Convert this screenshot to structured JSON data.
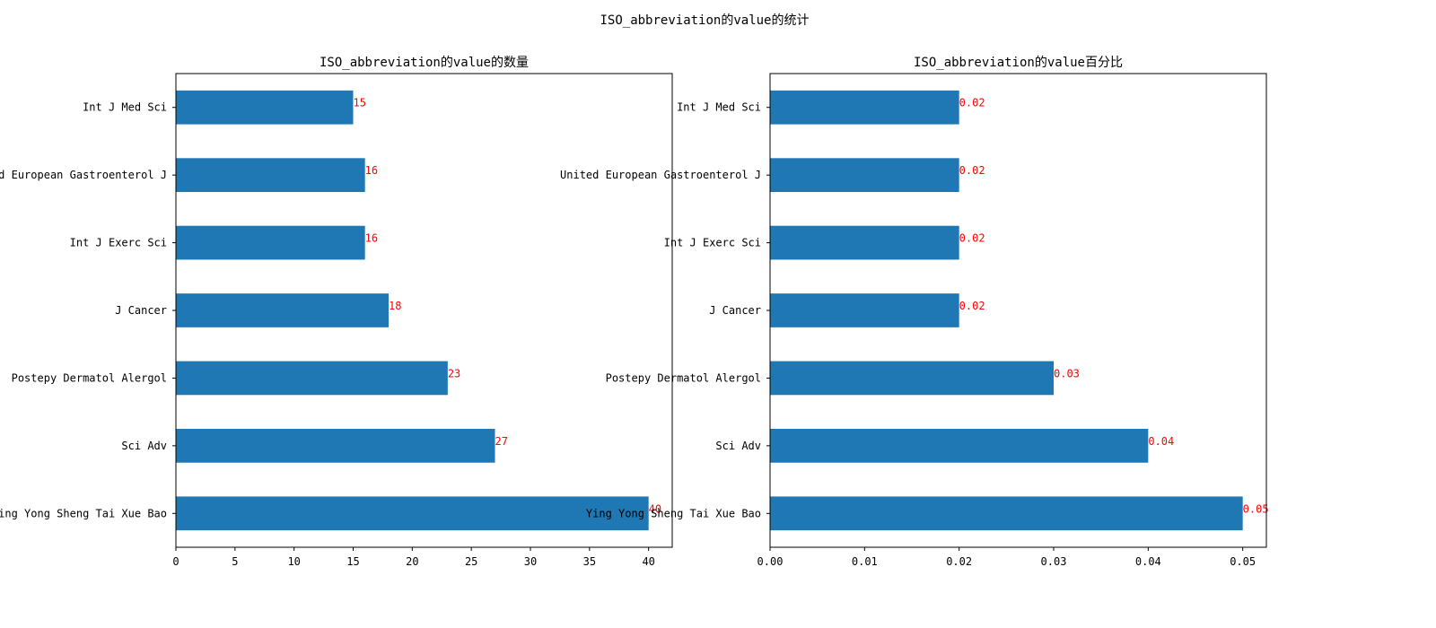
{
  "figure": {
    "suptitle": "ISO_abbreviation的value的统计"
  },
  "colors": {
    "bar": "#1f77b4",
    "data_label": "#ff0000",
    "axis": "#000000"
  },
  "chart_data": [
    {
      "type": "bar",
      "orientation": "horizontal",
      "title": "ISO_abbreviation的value的数量",
      "xlabel": "",
      "ylabel": "",
      "categories": [
        "Ying Yong Sheng Tai Xue Bao",
        "Sci Adv",
        "Postepy Dermatol Alergol",
        "J Cancer",
        "Int J Exerc Sci",
        "United European Gastroenterol J",
        "Int J Med Sci"
      ],
      "values": [
        40,
        27,
        23,
        18,
        16,
        16,
        15
      ],
      "data_labels": [
        "40",
        "27",
        "23",
        "18",
        "16",
        "16",
        "15"
      ],
      "xlim": [
        0,
        42
      ],
      "xticks": [
        0,
        5,
        10,
        15,
        20,
        25,
        30,
        35,
        40
      ],
      "xtick_labels": [
        "0",
        "5",
        "10",
        "15",
        "20",
        "25",
        "30",
        "35",
        "40"
      ],
      "grid": false,
      "legend": "none"
    },
    {
      "type": "bar",
      "orientation": "horizontal",
      "title": "ISO_abbreviation的value百分比",
      "xlabel": "",
      "ylabel": "",
      "categories": [
        "Ying Yong Sheng Tai Xue Bao",
        "Sci Adv",
        "Postepy Dermatol Alergol",
        "J Cancer",
        "Int J Exerc Sci",
        "United European Gastroenterol J",
        "Int J Med Sci"
      ],
      "values": [
        0.05,
        0.04,
        0.03,
        0.02,
        0.02,
        0.02,
        0.02
      ],
      "data_labels": [
        "0.05",
        "0.04",
        "0.03",
        "0.02",
        "0.02",
        "0.02",
        "0.02"
      ],
      "xlim": [
        0,
        0.0525
      ],
      "xticks": [
        0,
        0.01,
        0.02,
        0.03,
        0.04,
        0.05
      ],
      "xtick_labels": [
        "0.00",
        "0.01",
        "0.02",
        "0.03",
        "0.04",
        "0.05"
      ],
      "grid": false,
      "legend": "none"
    }
  ]
}
